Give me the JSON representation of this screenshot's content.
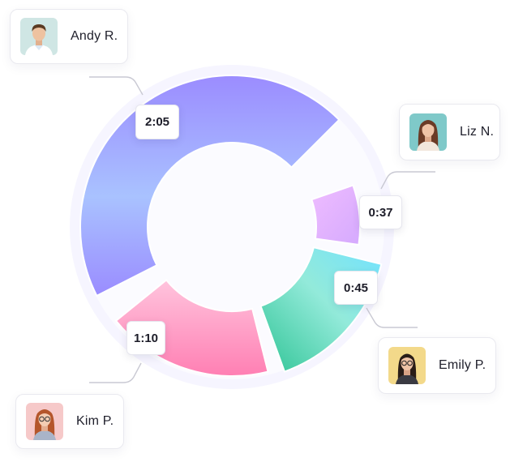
{
  "chart_data": {
    "type": "pie",
    "variant": "donut",
    "segments": [
      {
        "person": "Andy R.",
        "duration": "2:05",
        "seconds": 125,
        "gradient": [
          "#9b8cff",
          "#a8c4ff"
        ]
      },
      {
        "person": "Liz N.",
        "duration": "0:37",
        "seconds": 37,
        "gradient": [
          "#ecb8ff",
          "#d3a8ff"
        ]
      },
      {
        "person": "Emily P.",
        "duration": "0:45",
        "seconds": 45,
        "gradient": [
          "#6fe0ff",
          "#2fc59c"
        ]
      },
      {
        "person": "Kim P.",
        "duration": "1:10",
        "seconds": 70,
        "gradient": [
          "#ffb5d6",
          "#ff7fb3"
        ]
      }
    ]
  },
  "people": {
    "andy": {
      "name": "Andy R.",
      "avatar_bg": "#cfe6e4",
      "avatar_icon": "man-portrait-icon"
    },
    "liz": {
      "name": "Liz N.",
      "avatar_bg": "#7fc9c9",
      "avatar_icon": "woman-portrait-icon"
    },
    "emily": {
      "name": "Emily P.",
      "avatar_bg": "#f3d98a",
      "avatar_icon": "woman-glasses-portrait-icon"
    },
    "kim": {
      "name": "Kim P.",
      "avatar_bg": "#f6c9c9",
      "avatar_icon": "woman-glasses-portrait-icon"
    }
  },
  "times": {
    "andy": "2:05",
    "liz": "0:37",
    "emily": "0:45",
    "kim": "1:10"
  }
}
